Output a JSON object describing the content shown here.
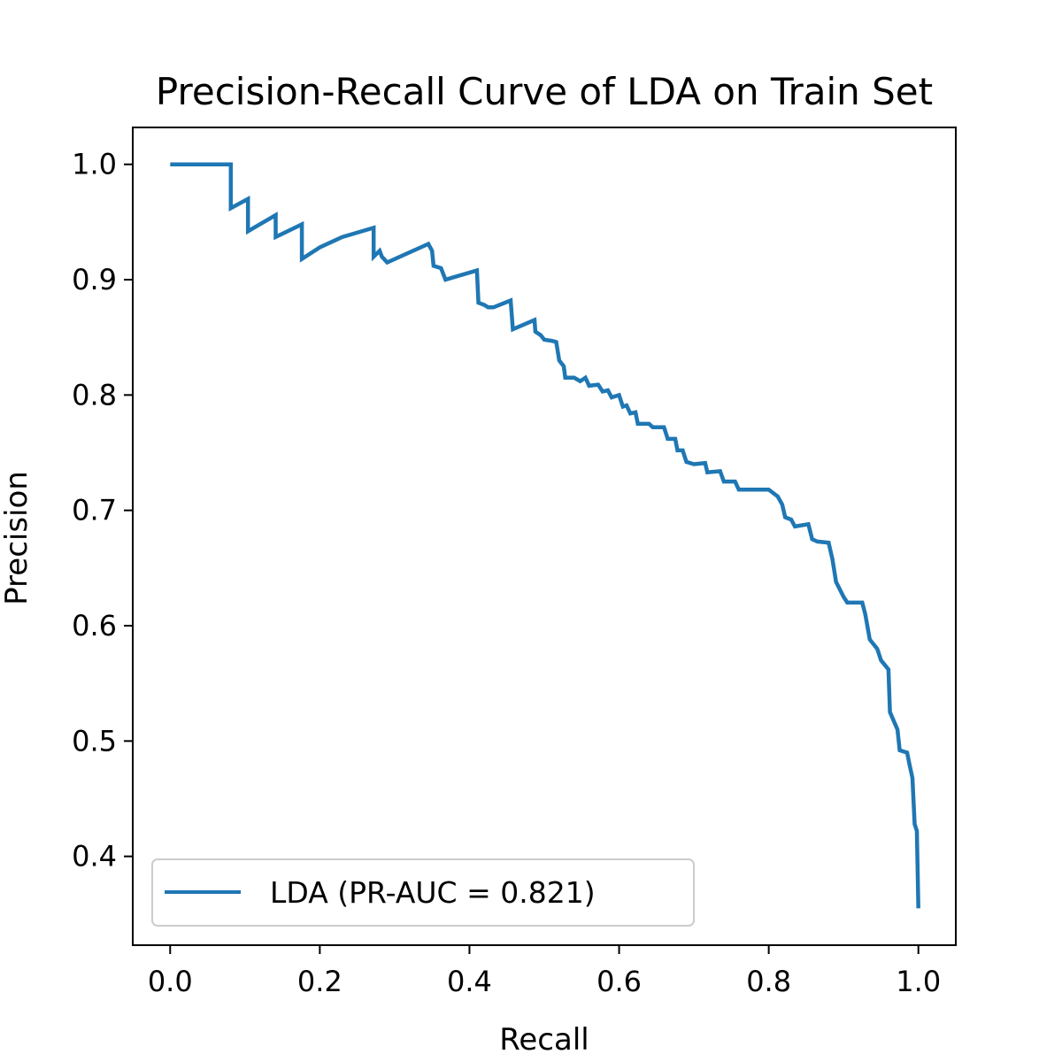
{
  "chart_data": {
    "type": "line",
    "title": "Precision-Recall Curve of LDA on Train Set",
    "xlabel": "Recall",
    "ylabel": "Precision",
    "xlim": [
      -0.05,
      1.05
    ],
    "ylim": [
      0.323,
      1.032
    ],
    "xticks": [
      0.0,
      0.2,
      0.4,
      0.6,
      0.8,
      1.0
    ],
    "xtick_labels": [
      "0.0",
      "0.2",
      "0.4",
      "0.6",
      "0.8",
      "1.0"
    ],
    "yticks": [
      0.4,
      0.5,
      0.6,
      0.7,
      0.8,
      0.9,
      1.0
    ],
    "ytick_labels": [
      "0.4",
      "0.5",
      "0.6",
      "0.7",
      "0.8",
      "0.9",
      "1.0"
    ],
    "grid": false,
    "legend_position": "lower-left",
    "series": [
      {
        "name": "LDA (PR-AUC = 0.821)",
        "color": "#1f77b4",
        "points": [
          [
            0.0,
            1.0
          ],
          [
            0.081,
            1.0
          ],
          [
            0.081,
            0.962
          ],
          [
            0.104,
            0.97
          ],
          [
            0.104,
            0.942
          ],
          [
            0.141,
            0.956
          ],
          [
            0.141,
            0.937
          ],
          [
            0.176,
            0.948
          ],
          [
            0.176,
            0.918
          ],
          [
            0.2,
            0.928
          ],
          [
            0.23,
            0.937
          ],
          [
            0.272,
            0.945
          ],
          [
            0.272,
            0.92
          ],
          [
            0.28,
            0.925
          ],
          [
            0.283,
            0.92
          ],
          [
            0.29,
            0.915
          ],
          [
            0.345,
            0.931
          ],
          [
            0.35,
            0.925
          ],
          [
            0.352,
            0.912
          ],
          [
            0.362,
            0.91
          ],
          [
            0.368,
            0.9
          ],
          [
            0.41,
            0.908
          ],
          [
            0.412,
            0.88
          ],
          [
            0.42,
            0.878
          ],
          [
            0.425,
            0.876
          ],
          [
            0.432,
            0.876
          ],
          [
            0.455,
            0.882
          ],
          [
            0.458,
            0.857
          ],
          [
            0.487,
            0.865
          ],
          [
            0.488,
            0.855
          ],
          [
            0.495,
            0.852
          ],
          [
            0.5,
            0.848
          ],
          [
            0.51,
            0.847
          ],
          [
            0.516,
            0.846
          ],
          [
            0.52,
            0.83
          ],
          [
            0.526,
            0.825
          ],
          [
            0.528,
            0.815
          ],
          [
            0.54,
            0.815
          ],
          [
            0.548,
            0.812
          ],
          [
            0.555,
            0.815
          ],
          [
            0.56,
            0.808
          ],
          [
            0.572,
            0.809
          ],
          [
            0.578,
            0.803
          ],
          [
            0.585,
            0.804
          ],
          [
            0.59,
            0.798
          ],
          [
            0.6,
            0.8
          ],
          [
            0.605,
            0.79
          ],
          [
            0.61,
            0.791
          ],
          [
            0.615,
            0.784
          ],
          [
            0.622,
            0.785
          ],
          [
            0.625,
            0.775
          ],
          [
            0.64,
            0.775
          ],
          [
            0.645,
            0.772
          ],
          [
            0.66,
            0.772
          ],
          [
            0.665,
            0.762
          ],
          [
            0.675,
            0.762
          ],
          [
            0.678,
            0.752
          ],
          [
            0.685,
            0.752
          ],
          [
            0.69,
            0.742
          ],
          [
            0.7,
            0.74
          ],
          [
            0.715,
            0.741
          ],
          [
            0.718,
            0.733
          ],
          [
            0.735,
            0.734
          ],
          [
            0.74,
            0.725
          ],
          [
            0.755,
            0.725
          ],
          [
            0.76,
            0.718
          ],
          [
            0.775,
            0.718
          ],
          [
            0.8,
            0.718
          ],
          [
            0.812,
            0.712
          ],
          [
            0.818,
            0.705
          ],
          [
            0.822,
            0.694
          ],
          [
            0.83,
            0.692
          ],
          [
            0.835,
            0.686
          ],
          [
            0.853,
            0.688
          ],
          [
            0.858,
            0.675
          ],
          [
            0.865,
            0.673
          ],
          [
            0.88,
            0.672
          ],
          [
            0.885,
            0.658
          ],
          [
            0.89,
            0.638
          ],
          [
            0.9,
            0.625
          ],
          [
            0.905,
            0.62
          ],
          [
            0.925,
            0.62
          ],
          [
            0.929,
            0.61
          ],
          [
            0.935,
            0.588
          ],
          [
            0.945,
            0.58
          ],
          [
            0.95,
            0.57
          ],
          [
            0.96,
            0.562
          ],
          [
            0.962,
            0.525
          ],
          [
            0.972,
            0.51
          ],
          [
            0.975,
            0.492
          ],
          [
            0.985,
            0.49
          ],
          [
            0.988,
            0.48
          ],
          [
            0.992,
            0.468
          ],
          [
            0.995,
            0.428
          ],
          [
            0.998,
            0.422
          ],
          [
            1.0,
            0.355
          ]
        ]
      }
    ]
  }
}
